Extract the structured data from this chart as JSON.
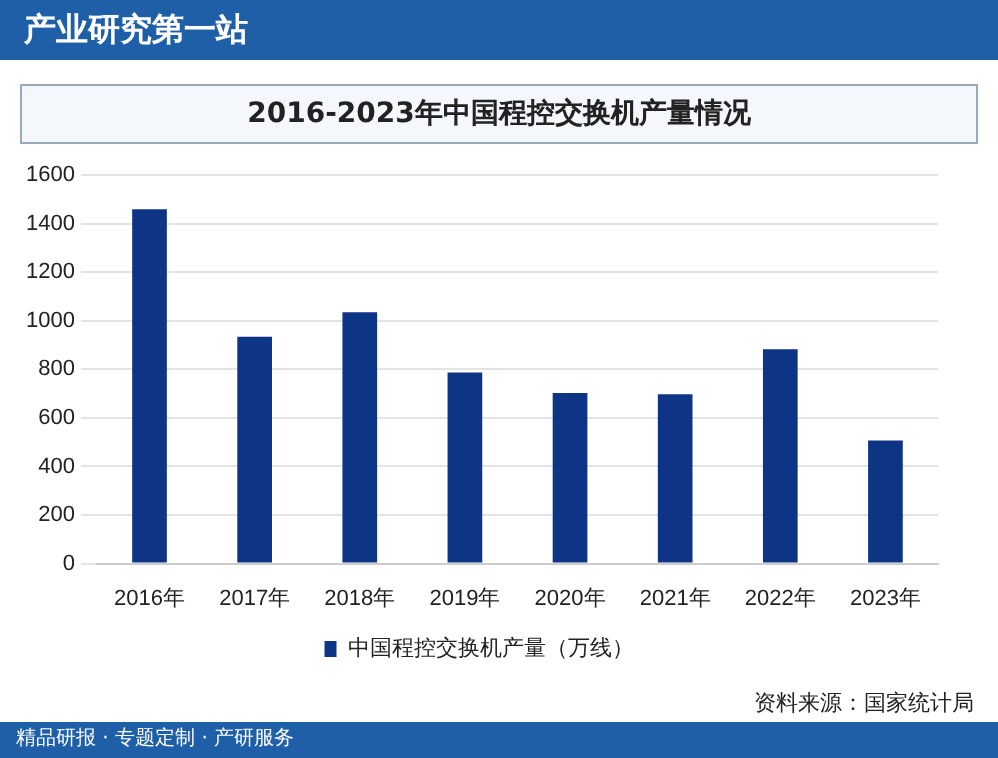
{
  "chart_data": {
    "type": "bar",
    "title": "2016-2023年中国程控交换机产量情况",
    "categories": [
      "2016年",
      "2017年",
      "2018年",
      "2019年",
      "2020年",
      "2021年",
      "2022年",
      "2023年"
    ],
    "series": [
      {
        "name": "中国程控交换机产量（万线）",
        "color": "#0e3585",
        "values": [
          1460,
          935,
          1035,
          787,
          703,
          698,
          883,
          507
        ]
      }
    ],
    "ylim": [
      0,
      1600
    ],
    "yticks": [
      0,
      200,
      400,
      600,
      800,
      1000,
      1200,
      1400,
      1600
    ],
    "grid": "y",
    "legend": "bottom",
    "annotations": [
      "产业研究第一站",
      "资料来源：国家统计局",
      "精品研报 · 专题定制 · 产研服务"
    ]
  }
}
